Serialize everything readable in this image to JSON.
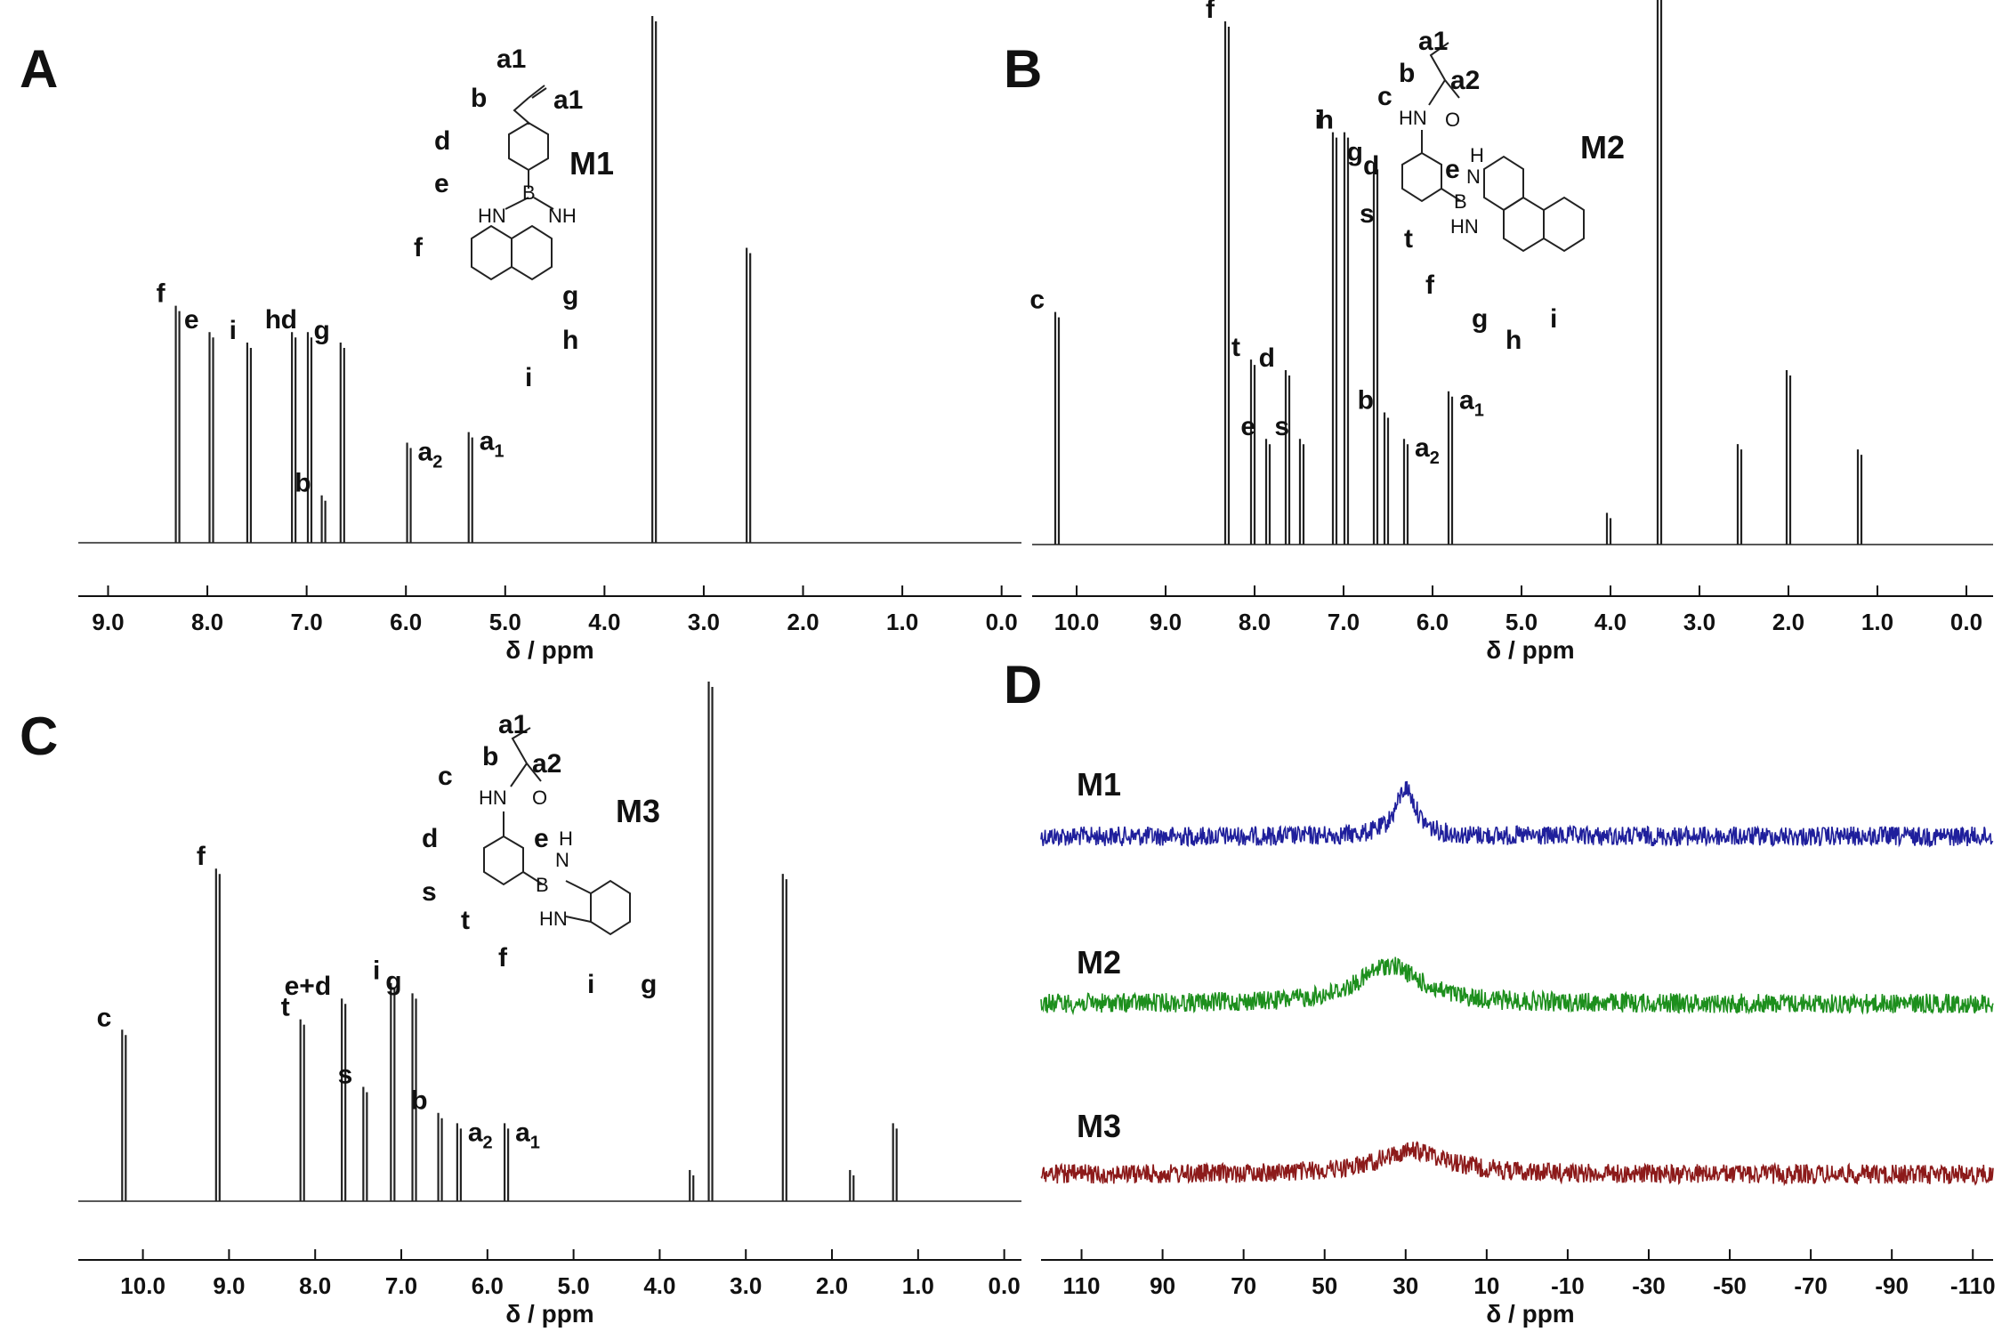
{
  "chart_data": [
    {
      "type": "line",
      "panel": "A",
      "compound": "M1",
      "xlabel": "δ / ppm",
      "xlim": [
        9.3,
        -0.2
      ],
      "ticks": [
        "9.0",
        "8.0",
        "7.0",
        "6.0",
        "5.0",
        "4.0",
        "3.0",
        "2.0",
        "1.0",
        "0.0"
      ],
      "peaks": [
        {
          "ppm": 8.3,
          "h": 0.45,
          "label": "f"
        },
        {
          "ppm": 7.96,
          "h": 0.4,
          "label": "e"
        },
        {
          "ppm": 7.58,
          "h": 0.38,
          "label": "i"
        },
        {
          "ppm": 7.13,
          "h": 0.4,
          "label": "h"
        },
        {
          "ppm": 6.97,
          "h": 0.4,
          "label": "d"
        },
        {
          "ppm": 6.83,
          "h": 0.09,
          "label": "b"
        },
        {
          "ppm": 6.64,
          "h": 0.38,
          "label": "g"
        },
        {
          "ppm": 5.97,
          "h": 0.19,
          "label": "a2"
        },
        {
          "ppm": 5.35,
          "h": 0.21,
          "label": "a1"
        },
        {
          "ppm": 3.5,
          "h": 1.0,
          "label": ""
        },
        {
          "ppm": 2.55,
          "h": 0.56,
          "label": ""
        }
      ],
      "molecule_labels": [
        "a1",
        "b",
        "a1",
        "d",
        "e",
        "f",
        "g",
        "h",
        "i",
        "HN",
        "NH",
        "B"
      ]
    },
    {
      "type": "line",
      "panel": "B",
      "compound": "M2",
      "xlabel": "δ / ppm",
      "xlim": [
        10.5,
        -0.3
      ],
      "ticks": [
        "10.0",
        "9.0",
        "8.0",
        "7.0",
        "6.0",
        "5.0",
        "4.0",
        "3.0",
        "2.0",
        "1.0",
        "0.0"
      ],
      "peaks": [
        {
          "ppm": 10.22,
          "h": 0.44,
          "label": "c"
        },
        {
          "ppm": 8.31,
          "h": 0.99,
          "label": "f"
        },
        {
          "ppm": 8.02,
          "h": 0.35,
          "label": "t"
        },
        {
          "ppm": 7.85,
          "h": 0.2,
          "label": "e"
        },
        {
          "ppm": 7.63,
          "h": 0.33,
          "label": "d"
        },
        {
          "ppm": 7.47,
          "h": 0.2,
          "label": "s"
        },
        {
          "ppm": 7.1,
          "h": 0.78,
          "label": "i"
        },
        {
          "ppm": 6.97,
          "h": 0.78,
          "label": "h"
        },
        {
          "ppm": 6.64,
          "h": 0.72,
          "label": "g"
        },
        {
          "ppm": 6.52,
          "h": 0.25,
          "label": "b"
        },
        {
          "ppm": 6.3,
          "h": 0.2,
          "label": "a2"
        },
        {
          "ppm": 5.8,
          "h": 0.29,
          "label": "a1"
        },
        {
          "ppm": 4.02,
          "h": 0.06,
          "label": ""
        },
        {
          "ppm": 3.45,
          "h": 1.05,
          "label": ""
        },
        {
          "ppm": 2.55,
          "h": 0.19,
          "label": ""
        },
        {
          "ppm": 2.0,
          "h": 0.33,
          "label": ""
        },
        {
          "ppm": 1.2,
          "h": 0.18,
          "label": ""
        }
      ],
      "molecule_labels": [
        "a1",
        "b",
        "a2",
        "c",
        "HN",
        "O",
        "d",
        "e",
        "s",
        "t",
        "f",
        "g",
        "h",
        "i",
        "H",
        "N",
        "B",
        "HN"
      ]
    },
    {
      "type": "line",
      "panel": "C",
      "compound": "M3",
      "xlabel": "δ / ppm",
      "xlim": [
        10.75,
        -0.2
      ],
      "ticks": [
        "10.0",
        "9.0",
        "8.0",
        "7.0",
        "6.0",
        "5.0",
        "4.0",
        "3.0",
        "2.0",
        "1.0",
        "0.0"
      ],
      "peaks": [
        {
          "ppm": 10.22,
          "h": 0.33,
          "label": "c"
        },
        {
          "ppm": 9.13,
          "h": 0.64,
          "label": "f"
        },
        {
          "ppm": 8.15,
          "h": 0.35,
          "label": "t"
        },
        {
          "ppm": 7.67,
          "h": 0.39,
          "label": "e+d"
        },
        {
          "ppm": 7.42,
          "h": 0.22,
          "label": "s"
        },
        {
          "ppm": 7.1,
          "h": 0.42,
          "label": "i"
        },
        {
          "ppm": 6.85,
          "h": 0.4,
          "label": "g"
        },
        {
          "ppm": 6.55,
          "h": 0.17,
          "label": "b"
        },
        {
          "ppm": 6.33,
          "h": 0.15,
          "label": "a2"
        },
        {
          "ppm": 5.78,
          "h": 0.15,
          "label": "a1"
        },
        {
          "ppm": 3.63,
          "h": 0.06,
          "label": ""
        },
        {
          "ppm": 3.41,
          "h": 1.0,
          "label": ""
        },
        {
          "ppm": 2.55,
          "h": 0.63,
          "label": ""
        },
        {
          "ppm": 1.77,
          "h": 0.06,
          "label": ""
        },
        {
          "ppm": 1.27,
          "h": 0.15,
          "label": ""
        }
      ],
      "molecule_labels": [
        "a1",
        "b",
        "a2",
        "c",
        "HN",
        "O",
        "d",
        "e",
        "s",
        "t",
        "f",
        "i",
        "g",
        "H",
        "N",
        "B",
        "HN"
      ]
    },
    {
      "type": "line",
      "panel": "D",
      "xlabel": "δ / ppm",
      "xlim": [
        120,
        -115
      ],
      "ticks": [
        "110",
        "90",
        "70",
        "50",
        "30",
        "10",
        "-10",
        "-30",
        "-50",
        "-70",
        "-90",
        "-110"
      ],
      "series": [
        {
          "name": "M1",
          "color": "#1f1f9c",
          "peak_ppm": 30,
          "peak_height": 0.45,
          "width": 3
        },
        {
          "name": "M2",
          "color": "#1d8f1d",
          "peak_ppm": 34,
          "peak_height": 0.36,
          "width": 9
        },
        {
          "name": "M3",
          "color": "#8c1a1a",
          "peak_ppm": 28,
          "peak_height": 0.22,
          "width": 11
        }
      ]
    }
  ]
}
